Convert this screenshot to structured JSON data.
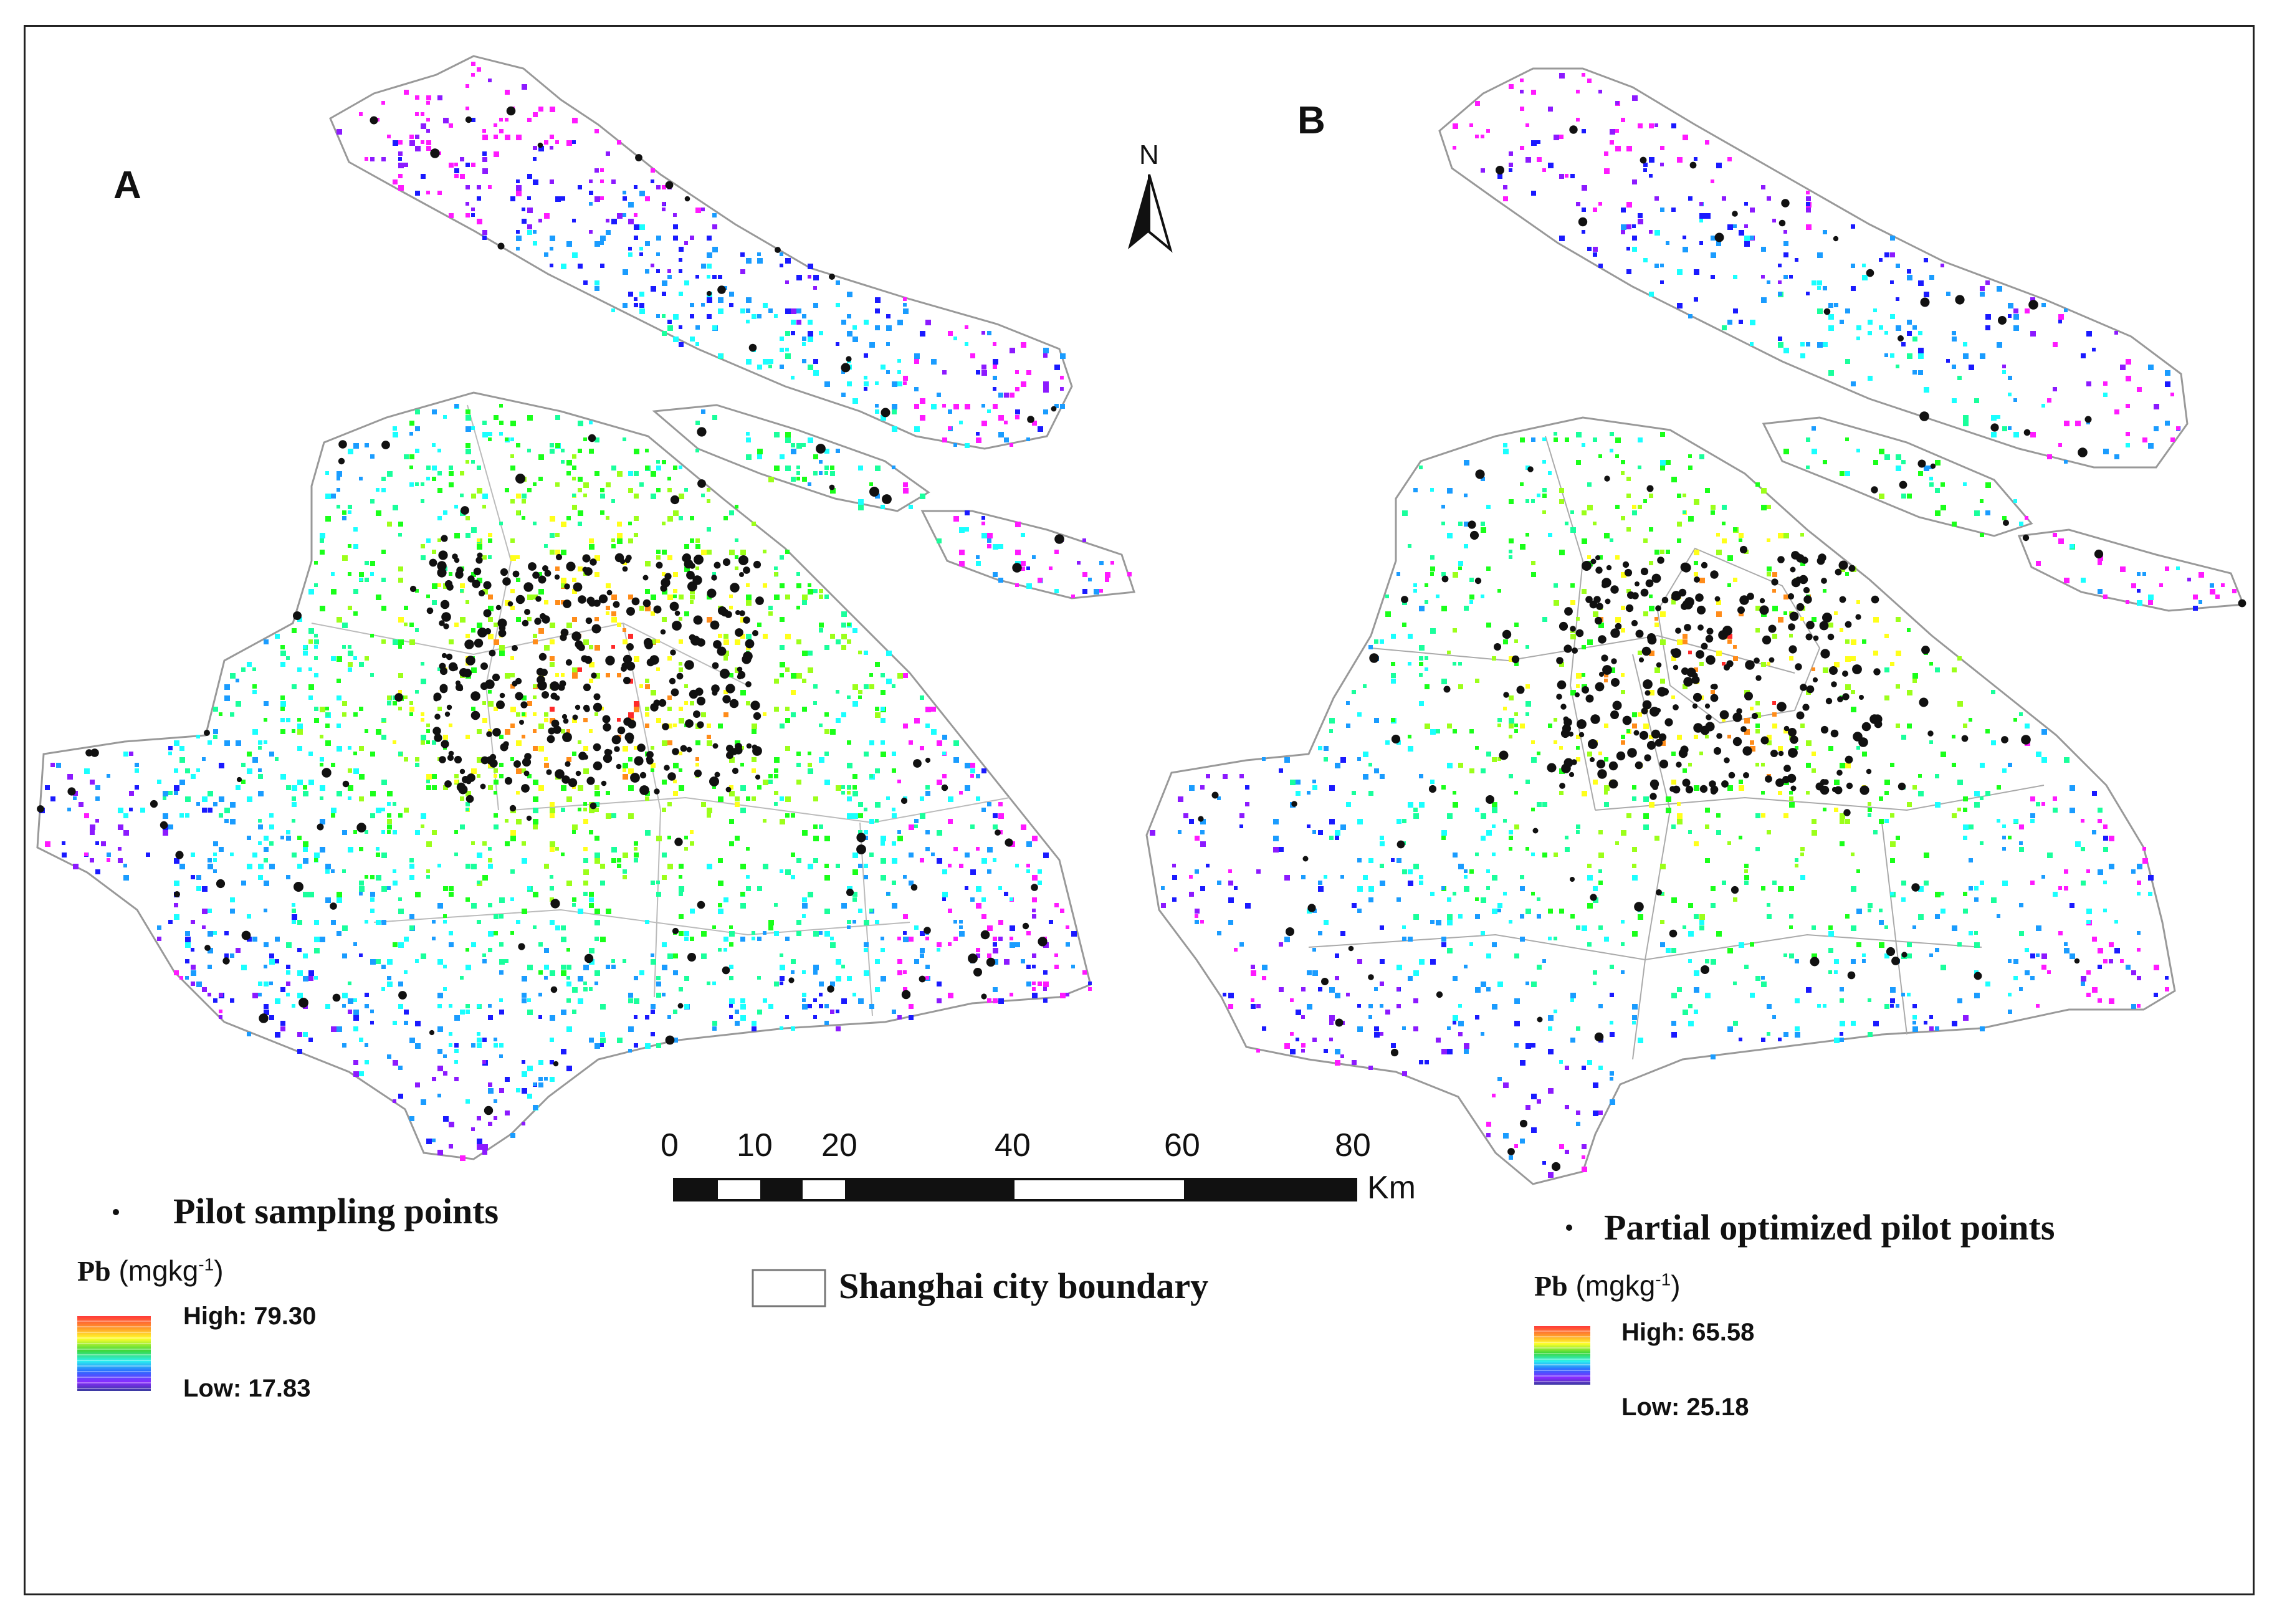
{
  "panels": {
    "a": {
      "letter": "A"
    },
    "b": {
      "letter": "B"
    }
  },
  "north_arrow": {
    "label": "N"
  },
  "scale_bar": {
    "ticks": [
      "0",
      "10",
      "20",
      "40",
      "60",
      "80"
    ],
    "unit": "Km"
  },
  "legend_a": {
    "points_label": "Pilot sampling points",
    "element": "Pb",
    "unit": "(mgkg",
    "unit_exp": "-1",
    "unit_close": ")",
    "high": "High: 79.30",
    "low": "Low: 17.83"
  },
  "legend_b": {
    "points_label": "Partial optimized pilot points",
    "element": "Pb",
    "unit": "(mgkg",
    "unit_exp": "-1",
    "unit_close": ")",
    "high": "High: 65.58",
    "low": "Low: 25.18"
  },
  "boundary_legend": {
    "label": "Shanghai city boundary"
  },
  "colors": {
    "ramp": [
      "#ff2a2a",
      "#ff8c1a",
      "#ffff1a",
      "#9cff1a",
      "#1aff1a",
      "#1aff9c",
      "#1affff",
      "#1a9cff",
      "#1a1aff",
      "#8c1aff",
      "#ff1aff"
    ],
    "points": "#111111",
    "boundary": "#999999"
  }
}
